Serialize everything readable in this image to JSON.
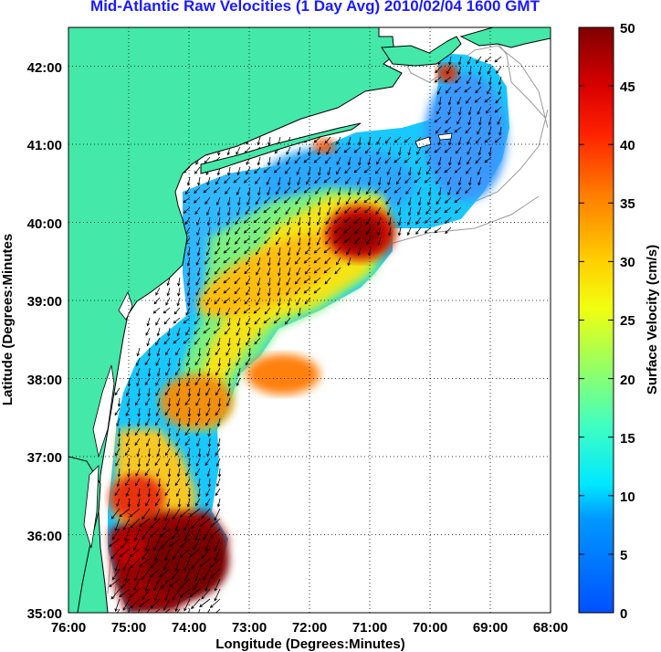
{
  "title": "Mid-Atlantic Raw Velocities (1 Day Avg) 2010/02/04 1600 GMT",
  "map": {
    "xlabel": "Longitude (Degrees:Minutes)",
    "ylabel": "Latitude (Degrees:Minutes",
    "lon_range": [
      -76,
      -68
    ],
    "lat_range": [
      35,
      42.5
    ],
    "lon_ticks": [
      "76:00",
      "75:00",
      "74:00",
      "73:00",
      "72:00",
      "71:00",
      "70:00",
      "69:00",
      "68:00"
    ],
    "lat_ticks": [
      "35:00",
      "36:00",
      "37:00",
      "38:00",
      "39:00",
      "40:00",
      "41:00",
      "42:00"
    ],
    "grid": true,
    "land_color": "#44e8a8",
    "contour_color": "#999999"
  },
  "colorbar": {
    "label": "Surface Velocity (cm/s)",
    "ticks": [
      "0",
      "5",
      "10",
      "15",
      "20",
      "25",
      "30",
      "35",
      "40",
      "45",
      "50"
    ],
    "range": [
      0,
      50
    ],
    "colormap": "jet"
  }
}
